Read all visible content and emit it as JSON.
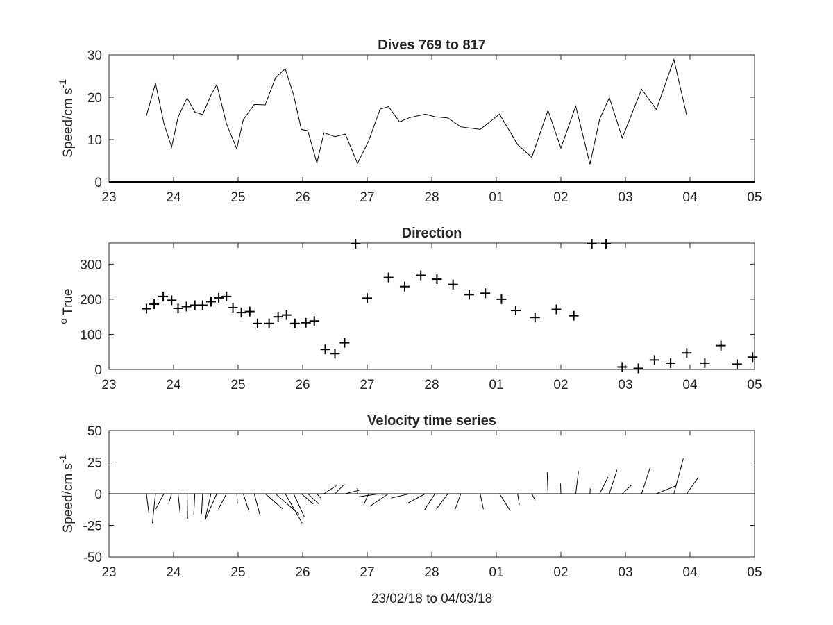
{
  "chart_data": [
    {
      "type": "line",
      "title": "Dives 769 to 817",
      "ylabel_main": "Speed/cm s",
      "ylabel_exp": "-1",
      "xlim": [
        0,
        10
      ],
      "ylim": [
        0,
        30
      ],
      "xtick_labels": [
        "23",
        "24",
        "25",
        "26",
        "27",
        "28",
        "01",
        "02",
        "03",
        "04",
        "05"
      ],
      "ytick_labels": [
        "0",
        "10",
        "20",
        "30"
      ],
      "series": [
        {
          "x": [
            0.58,
            0.72,
            0.85,
            0.97,
            1.07,
            1.21,
            1.33,
            1.45,
            1.58,
            1.67,
            1.82,
            1.98,
            2.08,
            2.25,
            2.42,
            2.58,
            2.73,
            2.86,
            2.98,
            3.08,
            3.22,
            3.33,
            3.5,
            3.66,
            3.85,
            4.02,
            4.2,
            4.33,
            4.5,
            4.66,
            4.9,
            5.05,
            5.25,
            5.45,
            5.75,
            6.05,
            6.33,
            6.55,
            6.8,
            7.0,
            7.23,
            7.45,
            7.6,
            7.75,
            7.95,
            8.25,
            8.48,
            8.75,
            8.95
          ],
          "y": [
            15.6,
            23.3,
            13.8,
            8.2,
            15.3,
            19.8,
            16.5,
            15.9,
            20.5,
            23.0,
            13.7,
            7.8,
            14.7,
            18.3,
            18.2,
            24.6,
            26.7,
            20.5,
            12.4,
            12.1,
            4.5,
            11.6,
            10.7,
            11.3,
            4.4,
            9.6,
            17.2,
            17.8,
            14.2,
            15.2,
            16.0,
            15.4,
            15.1,
            13.0,
            12.4,
            16.0,
            8.8,
            5.8,
            16.9,
            8.0,
            17.9,
            4.2,
            14.8,
            19.9,
            10.4,
            21.9,
            17.1,
            28.9,
            15.7
          ]
        }
      ]
    },
    {
      "type": "scatter",
      "title": "Direction",
      "ylabel_main": "True",
      "ylabel_sup": "o",
      "xlim": [
        0,
        10
      ],
      "ylim": [
        0,
        360
      ],
      "xtick_labels": [
        "23",
        "24",
        "25",
        "26",
        "27",
        "28",
        "01",
        "02",
        "03",
        "04",
        "05"
      ],
      "ytick_labels": [
        "0",
        "100",
        "200",
        "300"
      ],
      "series": [
        {
          "marker": "+",
          "x": [
            0.58,
            0.7,
            0.84,
            0.97,
            1.07,
            1.2,
            1.33,
            1.45,
            1.58,
            1.7,
            1.82,
            1.92,
            2.05,
            2.18,
            2.3,
            2.48,
            2.62,
            2.75,
            2.88,
            3.05,
            3.18,
            3.35,
            3.5,
            3.65,
            3.82,
            4.0,
            4.33,
            4.58,
            4.83,
            5.08,
            5.33,
            5.58,
            5.83,
            6.08,
            6.3,
            6.6,
            6.93,
            7.2,
            7.48,
            7.7,
            7.95,
            8.2,
            8.45,
            8.7,
            8.95
          ],
          "y": [
            173,
            186,
            208,
            197,
            174,
            179,
            183,
            183,
            193,
            204,
            208,
            176,
            162,
            165,
            131,
            131,
            150,
            155,
            131,
            133,
            138,
            57,
            45,
            76,
            358,
            203,
            262,
            236,
            268,
            257,
            242,
            213,
            217,
            200,
            168,
            148,
            171,
            153,
            358,
            358,
            7,
            3,
            27,
            18,
            47
          ]
        },
        {
          "marker": "+",
          "x": [
            9.23,
            9.48,
            9.73,
            9.97
          ],
          "y": [
            18,
            68,
            15,
            35
          ]
        }
      ]
    },
    {
      "type": "line",
      "title": "Velocity time series",
      "ylabel_main": "Speed/cm s",
      "ylabel_exp": "-1",
      "xlabel": "23/02/18 to 04/03/18",
      "xlim": [
        0,
        10
      ],
      "ylim": [
        -50,
        50
      ],
      "xtick_labels": [
        "23",
        "24",
        "25",
        "26",
        "27",
        "28",
        "01",
        "02",
        "03",
        "04",
        "05"
      ],
      "ytick_labels": [
        "50",
        "25",
        "0",
        "-25",
        "-50"
      ],
      "series": [
        {
          "name": "",
          "x": [
            0.58,
            0.72,
            0.85,
            0.97,
            1.07,
            1.21,
            1.33,
            1.45,
            1.58,
            1.67,
            1.82,
            1.98,
            2.08,
            2.25,
            2.42,
            2.58,
            2.73,
            2.86,
            2.98,
            3.08,
            3.22,
            3.33,
            3.5,
            3.66,
            3.85,
            4.02,
            4.2,
            4.33,
            4.5,
            4.66,
            4.9,
            5.05,
            5.25,
            5.45,
            5.75,
            6.05,
            6.33,
            6.55,
            6.8,
            7.0,
            7.23,
            7.45,
            7.6,
            7.75,
            7.95,
            8.25,
            8.48,
            8.75,
            8.95
          ],
          "speed": [
            15.6,
            23.3,
            13.8,
            8.2,
            15.3,
            19.8,
            16.5,
            15.9,
            20.5,
            23.0,
            13.7,
            7.8,
            14.7,
            18.3,
            18.2,
            24.6,
            26.7,
            20.5,
            12.4,
            12.1,
            4.5,
            11.6,
            10.7,
            11.3,
            4.4,
            9.6,
            17.2,
            17.8,
            14.2,
            15.2,
            16.0,
            15.4,
            15.1,
            13.0,
            12.4,
            16.0,
            8.8,
            5.8,
            16.9,
            8.0,
            17.9,
            4.2,
            14.8,
            19.9,
            10.4,
            21.9,
            17.1,
            28.9,
            15.7
          ],
          "direction": [
            173,
            186,
            208,
            197,
            174,
            179,
            183,
            183,
            193,
            204,
            208,
            176,
            162,
            165,
            131,
            131,
            150,
            155,
            131,
            133,
            138,
            57,
            45,
            76,
            358,
            203,
            262,
            236,
            268,
            257,
            242,
            213,
            217,
            200,
            168,
            148,
            171,
            153,
            358,
            358,
            7,
            3,
            27,
            18,
            47,
            18,
            68,
            15,
            35
          ]
        }
      ]
    }
  ]
}
